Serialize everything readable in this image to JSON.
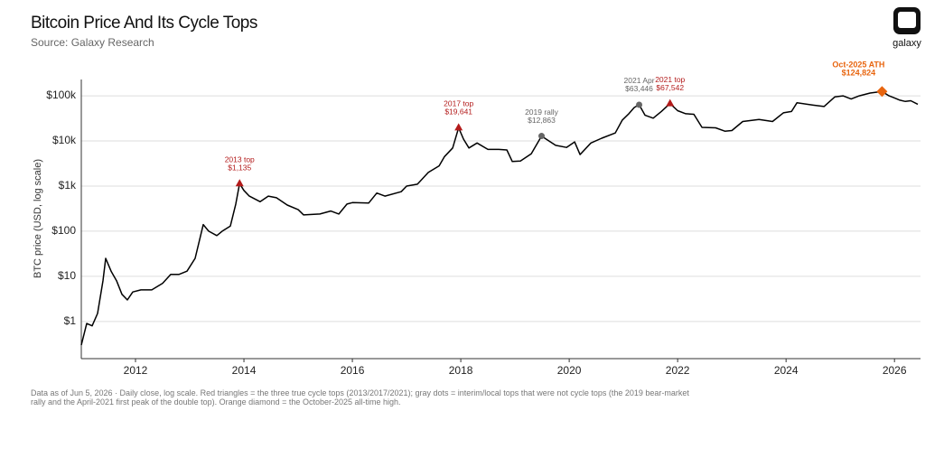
{
  "chart_data": {
    "type": "line",
    "title": "Bitcoin Price And Its Cycle Tops",
    "subtitle": "Source: Galaxy Research",
    "y_label": "BTC price (USD, log scale)",
    "note": "Data as of Jun 5, 2026 · Daily close, log scale. Red triangles = the three true cycle tops (2013/2017/2021); gray dots = interim/local tops that were not cycle tops (the 2019 bear-market rally and the April-2021 first peak of the double top). Orange diamond = the October-2025 all-time high.",
    "logo": "galaxy",
    "log_scale": true,
    "grid": true,
    "xlim": [
      2011.0,
      2026.48
    ],
    "xticks": [
      2012,
      2014,
      2016,
      2018,
      2020,
      2022,
      2024,
      2026
    ],
    "ylim": [
      0.15,
      230000
    ],
    "yticks": [
      {
        "value": 1,
        "label": "$1"
      },
      {
        "value": 10,
        "label": "$10"
      },
      {
        "value": 100,
        "label": "$100"
      },
      {
        "value": 1000,
        "label": "$1k"
      },
      {
        "value": 10000,
        "label": "$10k"
      },
      {
        "value": 100000,
        "label": "$100k"
      }
    ],
    "x": [
      2011.0,
      2011.1,
      2011.2,
      2011.3,
      2011.4,
      2011.45,
      2011.55,
      2011.65,
      2011.75,
      2011.85,
      2011.95,
      2012.1,
      2012.3,
      2012.5,
      2012.65,
      2012.8,
      2012.95,
      2013.1,
      2013.25,
      2013.35,
      2013.5,
      2013.6,
      2013.75,
      2013.85,
      2013.92,
      2014.0,
      2014.1,
      2014.3,
      2014.45,
      2014.6,
      2014.8,
      2015.0,
      2015.1,
      2015.4,
      2015.6,
      2015.75,
      2015.9,
      2016.0,
      2016.3,
      2016.45,
      2016.6,
      2016.9,
      2017.0,
      2017.2,
      2017.4,
      2017.6,
      2017.7,
      2017.85,
      2017.96,
      2018.05,
      2018.15,
      2018.3,
      2018.5,
      2018.7,
      2018.85,
      2018.95,
      2019.1,
      2019.3,
      2019.49,
      2019.6,
      2019.75,
      2019.95,
      2020.1,
      2020.2,
      2020.4,
      2020.6,
      2020.85,
      2020.98,
      2021.1,
      2021.2,
      2021.29,
      2021.4,
      2021.55,
      2021.7,
      2021.86,
      2022.0,
      2022.15,
      2022.3,
      2022.45,
      2022.7,
      2022.87,
      2023.0,
      2023.2,
      2023.5,
      2023.75,
      2023.95,
      2024.1,
      2024.2,
      2024.5,
      2024.7,
      2024.9,
      2025.05,
      2025.2,
      2025.35,
      2025.55,
      2025.77,
      2025.9,
      2026.0,
      2026.1,
      2026.2,
      2026.3,
      2026.43
    ],
    "series": [
      {
        "name": "BTC price",
        "color": "#000000",
        "values": [
          0.3,
          0.9,
          0.8,
          1.5,
          8,
          25,
          13,
          8,
          4,
          3,
          4.5,
          5,
          5,
          7,
          11,
          11,
          13,
          25,
          140,
          100,
          80,
          100,
          130,
          400,
          1135,
          800,
          600,
          450,
          600,
          550,
          380,
          300,
          230,
          240,
          280,
          240,
          400,
          430,
          420,
          700,
          600,
          750,
          1000,
          1100,
          2000,
          2800,
          4500,
          7000,
          19641,
          11000,
          7000,
          9000,
          6500,
          6500,
          6300,
          3500,
          3600,
          5200,
          12863,
          10500,
          8000,
          7200,
          9500,
          5000,
          9000,
          11500,
          15000,
          29000,
          40000,
          55000,
          63446,
          37000,
          32000,
          45000,
          67542,
          47000,
          40000,
          39000,
          20000,
          19500,
          16500,
          17000,
          27000,
          30000,
          27000,
          42000,
          45000,
          70000,
          62000,
          58000,
          95000,
          100000,
          85000,
          100000,
          115000,
          124824,
          100000,
          90000,
          80000,
          75000,
          78000,
          65000
        ]
      }
    ],
    "annotations": [
      {
        "name": "2013 top",
        "x": 2013.92,
        "value": 1135,
        "value_label": "$1,135",
        "kind": "cycle-top",
        "color": "#b31b1b"
      },
      {
        "name": "2017 top",
        "x": 2017.96,
        "value": 19641,
        "value_label": "$19,641",
        "kind": "cycle-top",
        "color": "#b31b1b"
      },
      {
        "name": "2019 rally",
        "x": 2019.49,
        "value": 12863,
        "value_label": "$12,863",
        "kind": "local-top",
        "color": "#666666"
      },
      {
        "name": "2021 Apr",
        "x": 2021.29,
        "value": 63446,
        "value_label": "$63,446",
        "kind": "local-top",
        "color": "#666666"
      },
      {
        "name": "2021 top",
        "x": 2021.86,
        "value": 67542,
        "value_label": "$67,542",
        "kind": "cycle-top",
        "color": "#b31b1b"
      },
      {
        "name": "Oct-2025 ATH",
        "x": 2025.77,
        "value": 124824,
        "value_label": "$124,824",
        "kind": "ath",
        "color": "#e8650f"
      }
    ]
  }
}
